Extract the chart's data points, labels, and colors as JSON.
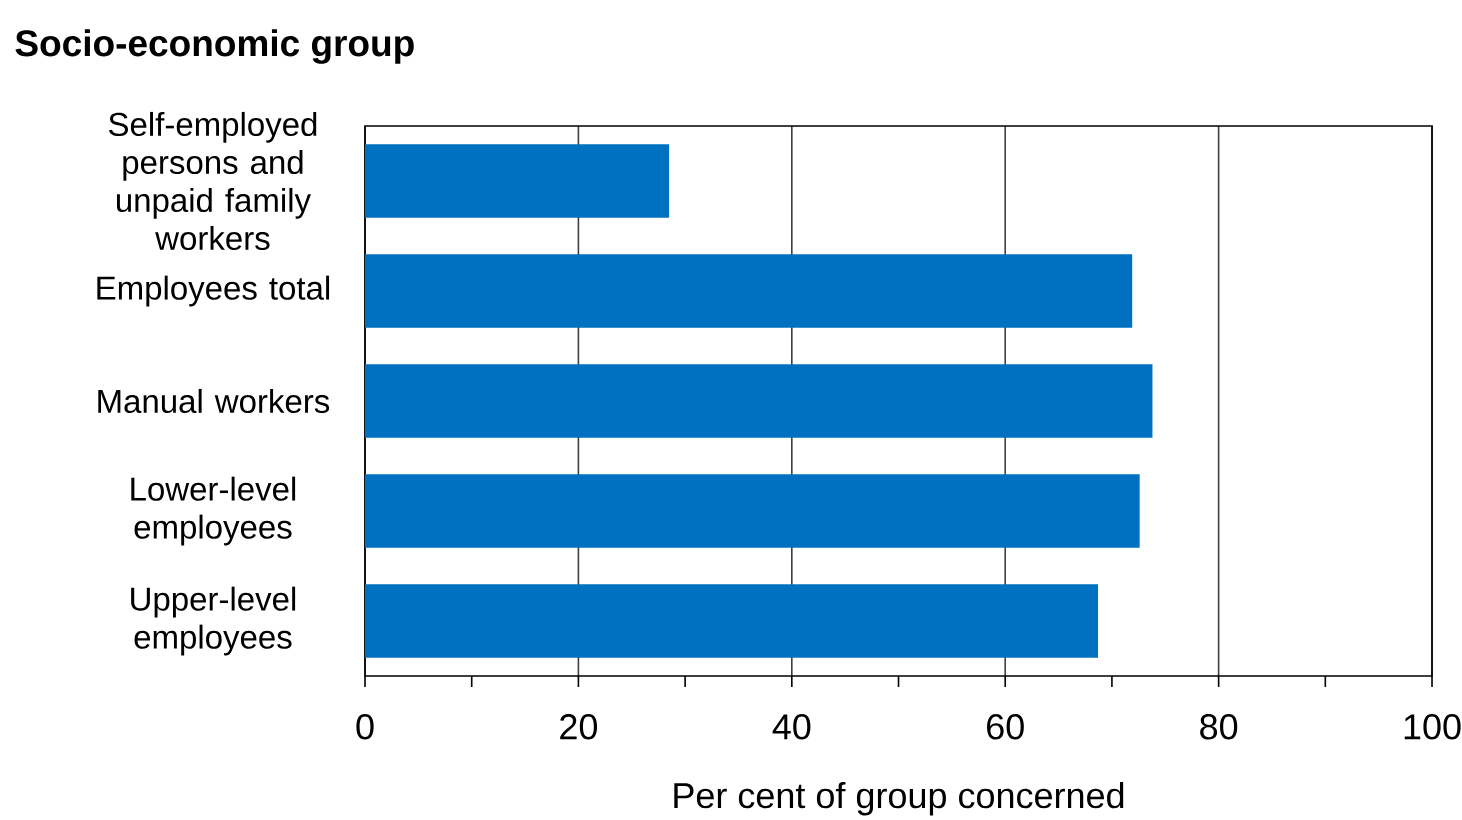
{
  "chart_data": {
    "type": "bar",
    "orientation": "horizontal",
    "ylabel": "Socio-economic group",
    "xlabel": "Per cent of group concerned",
    "categories": [
      "Self-employed persons and unpaid family workers",
      "Employees total",
      "Manual workers",
      "Lower-level employees",
      "Upper-level employees"
    ],
    "values": [
      28.5,
      71.9,
      73.8,
      72.6,
      68.7
    ],
    "color": "#0070c0",
    "xlim": [
      0,
      100
    ],
    "xticks": [
      0,
      {
        "value": 10,
        "label": null
      },
      20,
      {
        "value": 30,
        "label": null
      },
      40,
      {
        "value": 50,
        "label": null
      },
      60,
      {
        "value": 70,
        "label": null
      },
      80,
      {
        "value": 90,
        "label": null
      },
      100
    ],
    "grid": "x"
  }
}
